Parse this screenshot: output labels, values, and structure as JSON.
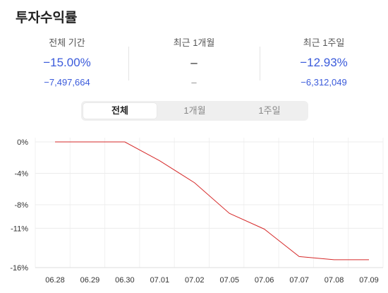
{
  "title": "투자수익률",
  "accent_color": "#3b5bdb",
  "stats": [
    {
      "label": "전체 기간",
      "pct": "−15.00%",
      "amount": "−7,497,664"
    },
    {
      "label": "최근 1개월",
      "pct": "–",
      "amount": "–"
    },
    {
      "label": "최근 1주일",
      "pct": "−12.93%",
      "amount": "−6,312,049"
    }
  ],
  "tabs": [
    {
      "label": "전체",
      "active": true
    },
    {
      "label": "1개월",
      "active": false
    },
    {
      "label": "1주일",
      "active": false
    }
  ],
  "chart_data": {
    "type": "line",
    "title": "",
    "xlabel": "",
    "ylabel": "",
    "x": [
      "06.28",
      "06.29",
      "06.30",
      "07.01",
      "07.02",
      "07.05",
      "07.06",
      "07.07",
      "07.08",
      "07.09"
    ],
    "series": [
      {
        "values": [
          0,
          0,
          0,
          -2.4,
          -5.2,
          -9.1,
          -11.1,
          -14.6,
          -15.0,
          -15.0
        ],
        "color": "#d62a2a"
      }
    ],
    "yticks": [
      0,
      -4,
      -8,
      -11,
      -16
    ],
    "ytick_labels": [
      "0%",
      "-4%",
      "-8%",
      "-11%",
      "-16%"
    ],
    "ylim": [
      -16,
      0
    ],
    "grid": true
  }
}
